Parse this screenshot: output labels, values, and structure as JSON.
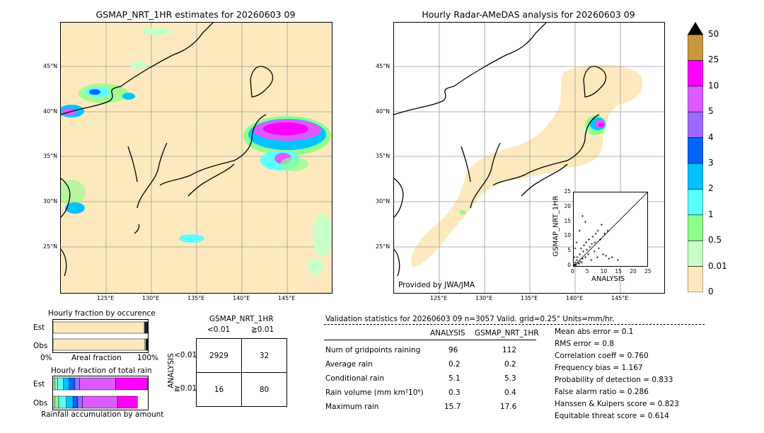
{
  "left_map": {
    "title": "GSMAP_NRT_1HR estimates for 20260603 09",
    "lat_labels": [
      "45°N",
      "40°N",
      "35°N",
      "30°N",
      "25°N"
    ],
    "lon_labels": [
      "125°E",
      "130°E",
      "135°E",
      "140°E",
      "145°E"
    ]
  },
  "right_map": {
    "title": "Hourly Radar-AMeDAS analysis for 20260603 09",
    "lat_labels": [
      "45°N",
      "40°N",
      "35°N",
      "30°N",
      "25°N"
    ],
    "lon_labels": [
      "125°E",
      "130°E",
      "135°E",
      "140°E",
      "145°E"
    ],
    "credit": "Provided by JWA/JMA"
  },
  "colorbar": {
    "labels": [
      "50",
      "25",
      "10",
      "5",
      "4",
      "3",
      "2",
      "1",
      "0.5",
      "0.01",
      "0"
    ],
    "colors": [
      "#c8963c",
      "#ff00ff",
      "#dc5aff",
      "#9b6bff",
      "#0064ff",
      "#00c3ff",
      "#5cffff",
      "#8cff8c",
      "#c8ffc8",
      "#fde9bd"
    ]
  },
  "scatter": {
    "xlabel": "ANALYSIS",
    "ylabel": "GSMAP_NRT_1HR",
    "ticks": [
      "0",
      "5",
      "10",
      "15",
      "20",
      "25"
    ]
  },
  "occ_chart": {
    "title": "Hourly fraction by occurence",
    "rows": [
      "Est",
      "Obs"
    ],
    "x_left": "0%",
    "x_mid": "Areal fraction",
    "x_right": "100%"
  },
  "rain_chart": {
    "title": "Hourly fraction of total rain",
    "rows": [
      "Est",
      "Obs"
    ],
    "x_label": "Rainfall accumulation by amount"
  },
  "contingency": {
    "title": "GSMAP_NRT_1HR",
    "col_headers": [
      "<0.01",
      "≧0.01"
    ],
    "row_axis": "ANALYSIS",
    "row_headers": [
      "<0.01",
      "≧0.01"
    ],
    "cells": [
      [
        "2929",
        "32"
      ],
      [
        "16",
        "80"
      ]
    ]
  },
  "validation": {
    "header": "Validation statistics for 20260603 09  n=3057 Valid. grid=0.25° Units=mm/hr.",
    "col_analysis": "ANALYSIS",
    "col_gsmap": "GSMAP_NRT_1HR",
    "rows": [
      {
        "label": "Num of gridpoints raining",
        "a": "96",
        "g": "112"
      },
      {
        "label": "Average rain",
        "a": "0.2",
        "g": "0.2"
      },
      {
        "label": "Conditional rain",
        "a": "5.1",
        "g": "5.3"
      },
      {
        "label": "Rain volume (mm km²10⁶)",
        "a": "0.3",
        "g": "0.4"
      },
      {
        "label": "Maximum rain",
        "a": "15.7",
        "g": "17.6"
      }
    ],
    "scores": [
      "Mean abs error =    0.1",
      "RMS error =    0.8",
      "Correlation coeff =  0.760",
      "Frequency bias =  1.167",
      "Probability of detection =  0.833",
      "False alarm ratio =  0.286",
      "Hanssen & Kuipers score =  0.823",
      "Equitable threat score =  0.614"
    ]
  },
  "chart_data": [
    {
      "type": "scatter",
      "xlabel": "ANALYSIS",
      "ylabel": "GSMAP_NRT_1HR",
      "xlim": [
        0,
        25
      ],
      "ylim": [
        0,
        25
      ],
      "points": [
        [
          0.3,
          0.5
        ],
        [
          0.5,
          1.2
        ],
        [
          0.8,
          0.4
        ],
        [
          1,
          2
        ],
        [
          1.2,
          3
        ],
        [
          1.5,
          1
        ],
        [
          2,
          4
        ],
        [
          2.2,
          1.5
        ],
        [
          2.5,
          6
        ],
        [
          3,
          2.5
        ],
        [
          3.2,
          5
        ],
        [
          3.5,
          7
        ],
        [
          4,
          3
        ],
        [
          4.2,
          8
        ],
        [
          4.5,
          5.5
        ],
        [
          5,
          4
        ],
        [
          5.2,
          9
        ],
        [
          5.5,
          6.5
        ],
        [
          6,
          2
        ],
        [
          6.2,
          7.5
        ],
        [
          6.5,
          10
        ],
        [
          7,
          5
        ],
        [
          7.2,
          8
        ],
        [
          7.5,
          11
        ],
        [
          8,
          3
        ],
        [
          8.2,
          12
        ],
        [
          8.5,
          6
        ],
        [
          9,
          9
        ],
        [
          9.5,
          14
        ],
        [
          10,
          4
        ],
        [
          10.5,
          11
        ],
        [
          11,
          3.5
        ],
        [
          11.5,
          12
        ],
        [
          12,
          2.5
        ],
        [
          13,
          3
        ],
        [
          15,
          2
        ],
        [
          3,
          17
        ],
        [
          4,
          15
        ],
        [
          2,
          12
        ],
        [
          1,
          8
        ],
        [
          0.5,
          6
        ],
        [
          0.2,
          3
        ],
        [
          0.1,
          0.2
        ],
        [
          0.6,
          0.3
        ],
        [
          1.8,
          0.8
        ],
        [
          2.8,
          1.2
        ]
      ]
    },
    {
      "type": "bar",
      "title": "Hourly fraction by occurence",
      "categories": [
        "Est",
        "Obs"
      ],
      "series": [
        {
          "color": "#fde9bd",
          "values": [
            0.963,
            0.969
          ]
        },
        {
          "color": "#c8ffc8",
          "values": [
            0.006,
            0.01
          ]
        },
        {
          "color": "#8cff8c",
          "values": [
            0.004,
            0.006
          ]
        },
        {
          "color": "#5cffff",
          "values": [
            0.005,
            0.004
          ]
        },
        {
          "color": "#00c3ff",
          "values": [
            0.004,
            0.003
          ]
        },
        {
          "color": "#0064ff",
          "values": [
            0.003,
            0.002
          ]
        },
        {
          "color": "#9b6bff",
          "values": [
            0.003,
            0.002
          ]
        },
        {
          "color": "#dc5aff",
          "values": [
            0.006,
            0.002
          ]
        },
        {
          "color": "#ff00ff",
          "values": [
            0.004,
            0.001
          ]
        },
        {
          "color": "#c8963c",
          "values": [
            0.002,
            0.001
          ]
        }
      ]
    },
    {
      "type": "bar",
      "title": "Hourly fraction of total rain",
      "categories": [
        "Est",
        "Obs"
      ],
      "series": [
        {
          "color": "#c8ffc8",
          "values": [
            0.02,
            0.02
          ]
        },
        {
          "color": "#8cff8c",
          "values": [
            0.03,
            0.04
          ]
        },
        {
          "color": "#5cffff",
          "values": [
            0.06,
            0.08
          ]
        },
        {
          "color": "#00c3ff",
          "values": [
            0.06,
            0.07
          ]
        },
        {
          "color": "#0064ff",
          "values": [
            0.06,
            0.05
          ]
        },
        {
          "color": "#9b6bff",
          "values": [
            0.05,
            0.05
          ]
        },
        {
          "color": "#dc5aff",
          "values": [
            0.38,
            0.37
          ]
        },
        {
          "color": "#ff00ff",
          "values": [
            0.34,
            0.21
          ]
        },
        {
          "color": "#c8963c",
          "values": [
            0.0,
            0.0
          ]
        }
      ]
    }
  ]
}
